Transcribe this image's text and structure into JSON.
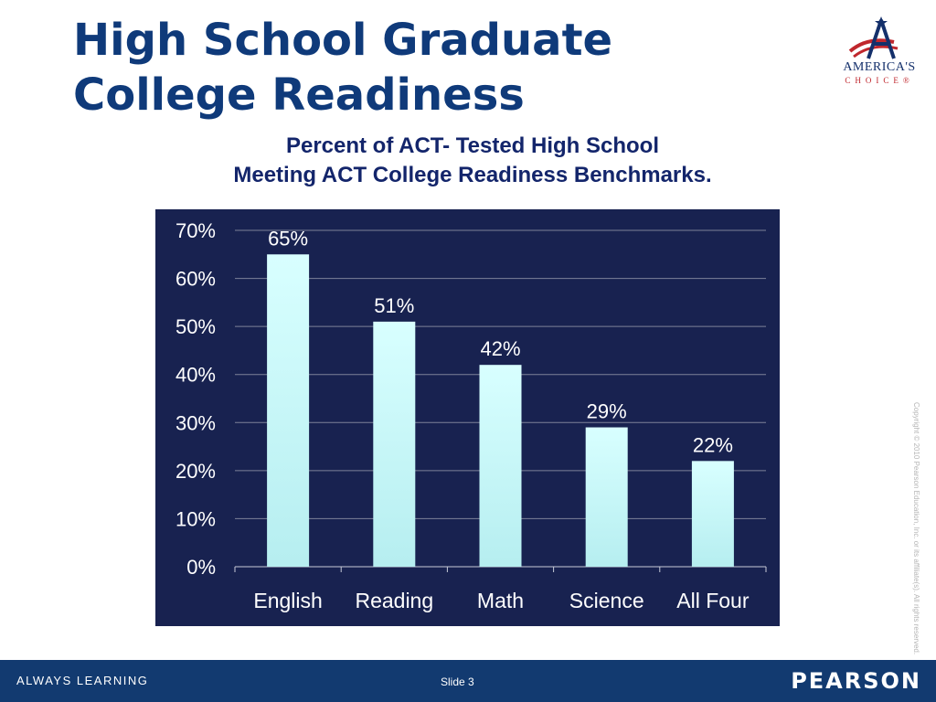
{
  "slide": {
    "title_line1": "High School Graduate",
    "title_line2": "College Readiness",
    "subtitle_line1": "Percent of ACT-  Tested High School",
    "subtitle_line2": "Meeting ACT College Readiness Benchmarks.",
    "copyright": "Copyright © 2010 Pearson Education, Inc. or its affiliate(s). All rights reserved."
  },
  "logo": {
    "word1": "AMERICA'S",
    "word2": "CHOICE",
    "trademark": "®",
    "icon": "americas-choice-star-logo"
  },
  "footer": {
    "tagline": "ALWAYS LEARNING",
    "slide_label": "Slide 3",
    "brand": "PEARSON"
  },
  "colors": {
    "title": "#0f3a7a",
    "subtitle": "#13256b",
    "chart_background": "#182250",
    "bar_top": "#d8ffff",
    "bar_bottom": "#b6eef0",
    "footer_bar": "#123a70",
    "logo_red": "#c0272d",
    "logo_navy": "#14306b"
  },
  "chart_data": {
    "type": "bar",
    "categories": [
      "English",
      "Reading",
      "Math",
      "Science",
      "All Four"
    ],
    "values": [
      65,
      51,
      42,
      29,
      22
    ],
    "value_labels": [
      "65%",
      "51%",
      "42%",
      "29%",
      "22%"
    ],
    "y_ticks": [
      "0%",
      "10%",
      "20%",
      "30%",
      "40%",
      "50%",
      "60%",
      "70%"
    ],
    "ylim": [
      0,
      70
    ],
    "title": "",
    "xlabel": "",
    "ylabel": "",
    "grid": true,
    "legend": "none"
  }
}
